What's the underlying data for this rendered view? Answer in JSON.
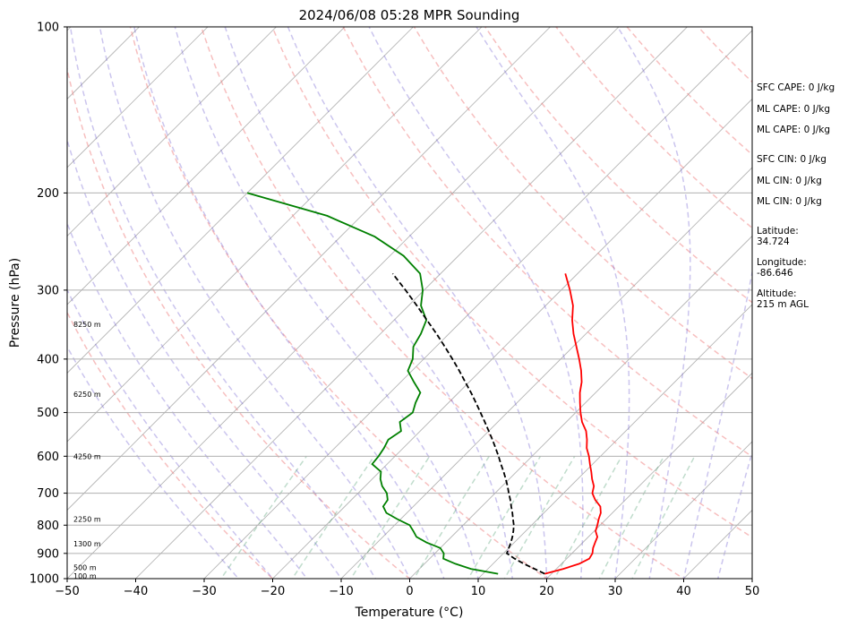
{
  "chart_data": {
    "type": "line",
    "title": "2024/06/08 05:28 MPR Sounding",
    "xlabel": "Temperature (°C)",
    "ylabel": "Pressure (hPa)",
    "xlim": [
      -50,
      50
    ],
    "ylim": [
      1000,
      100
    ],
    "y_scale": "log",
    "skew": true,
    "grid": true,
    "x_ticks": [
      "−50",
      "−40",
      "−30",
      "−20",
      "−10",
      "0",
      "10",
      "20",
      "30",
      "40",
      "50"
    ],
    "y_ticks": [
      "1000",
      "900",
      "800",
      "700",
      "600",
      "500",
      "400",
      "300",
      "200",
      "100"
    ],
    "height_labels": [
      "100 m",
      "500 m",
      "1300 m",
      "2250 m",
      "4250 m",
      "6250 m",
      "8250 m"
    ],
    "series": [
      {
        "color": "#ff0000",
        "points": [
          [
            980,
            19.0
          ],
          [
            960,
            21.0
          ],
          [
            940,
            22.6
          ],
          [
            920,
            23.3
          ],
          [
            900,
            23.0
          ],
          [
            880,
            22.3
          ],
          [
            860,
            21.8
          ],
          [
            840,
            21.3
          ],
          [
            820,
            20.2
          ],
          [
            800,
            19.6
          ],
          [
            780,
            18.9
          ],
          [
            760,
            18.3
          ],
          [
            740,
            17.3
          ],
          [
            720,
            15.6
          ],
          [
            700,
            14.2
          ],
          [
            680,
            13.4
          ],
          [
            660,
            12.1
          ],
          [
            640,
            10.9
          ],
          [
            620,
            9.6
          ],
          [
            600,
            8.3
          ],
          [
            580,
            6.8
          ],
          [
            560,
            5.6
          ],
          [
            540,
            4.2
          ],
          [
            520,
            2.3
          ],
          [
            500,
            0.7
          ],
          [
            480,
            -0.8
          ],
          [
            460,
            -2.3
          ],
          [
            440,
            -3.6
          ],
          [
            420,
            -5.3
          ],
          [
            400,
            -7.3
          ],
          [
            380,
            -9.5
          ],
          [
            360,
            -11.8
          ],
          [
            340,
            -14.0
          ],
          [
            320,
            -16.0
          ],
          [
            300,
            -18.7
          ],
          [
            280,
            -21.8
          ]
        ]
      },
      {
        "color": "#008000",
        "points": [
          [
            980,
            12.2
          ],
          [
            960,
            7.5
          ],
          [
            940,
            4.5
          ],
          [
            920,
            2.0
          ],
          [
            900,
            1.3
          ],
          [
            880,
            0.0
          ],
          [
            860,
            -2.8
          ],
          [
            840,
            -5.1
          ],
          [
            820,
            -6.4
          ],
          [
            800,
            -7.8
          ],
          [
            780,
            -10.5
          ],
          [
            760,
            -13.0
          ],
          [
            740,
            -14.4
          ],
          [
            720,
            -14.7
          ],
          [
            700,
            -15.8
          ],
          [
            680,
            -17.5
          ],
          [
            660,
            -18.8
          ],
          [
            640,
            -19.8
          ],
          [
            620,
            -22.2
          ],
          [
            600,
            -22.4
          ],
          [
            580,
            -22.8
          ],
          [
            560,
            -23.4
          ],
          [
            540,
            -22.8
          ],
          [
            520,
            -24.3
          ],
          [
            500,
            -23.8
          ],
          [
            480,
            -24.8
          ],
          [
            460,
            -25.6
          ],
          [
            440,
            -28.1
          ],
          [
            420,
            -30.6
          ],
          [
            400,
            -31.6
          ],
          [
            380,
            -33.3
          ],
          [
            360,
            -34.1
          ],
          [
            340,
            -35.3
          ],
          [
            320,
            -38.2
          ],
          [
            300,
            -40.2
          ],
          [
            280,
            -43.0
          ],
          [
            260,
            -48.0
          ],
          [
            240,
            -55.0
          ],
          [
            220,
            -65.0
          ],
          [
            200,
            -80.0
          ]
        ]
      },
      {
        "color": "#000000",
        "points": [
          [
            980,
            19.0
          ],
          [
            960,
            16.8
          ],
          [
            940,
            14.5
          ],
          [
            920,
            12.4
          ],
          [
            900,
            10.5
          ],
          [
            880,
            10.0
          ],
          [
            860,
            9.5
          ],
          [
            840,
            8.9
          ],
          [
            820,
            8.2
          ],
          [
            800,
            7.4
          ],
          [
            780,
            6.4
          ],
          [
            760,
            5.4
          ],
          [
            740,
            4.3
          ],
          [
            720,
            3.2
          ],
          [
            700,
            2.0
          ],
          [
            680,
            0.8
          ],
          [
            660,
            -0.5
          ],
          [
            640,
            -1.9
          ],
          [
            620,
            -3.4
          ],
          [
            600,
            -4.9
          ],
          [
            580,
            -6.5
          ],
          [
            560,
            -8.2
          ],
          [
            540,
            -10.0
          ],
          [
            520,
            -11.9
          ],
          [
            500,
            -13.9
          ],
          [
            480,
            -16.0
          ],
          [
            460,
            -18.2
          ],
          [
            440,
            -20.6
          ],
          [
            420,
            -23.1
          ],
          [
            400,
            -25.8
          ],
          [
            380,
            -28.7
          ],
          [
            360,
            -31.8
          ],
          [
            340,
            -35.2
          ],
          [
            320,
            -38.8
          ],
          [
            300,
            -42.7
          ],
          [
            280,
            -47.0
          ]
        ]
      }
    ]
  },
  "stats": [
    "SFC CAPE: 0 J/kg",
    "ML CAPE: 0 J/kg",
    "ML CAPE: 0 J/kg",
    "SFC CIN: 0 J/kg",
    "ML CIN: 0 J/kg",
    "ML CIN: 0 J/kg",
    "Latitude:",
    "34.724",
    "Longitude:",
    "-86.646",
    "Altitude:",
    "215 m AGL"
  ]
}
